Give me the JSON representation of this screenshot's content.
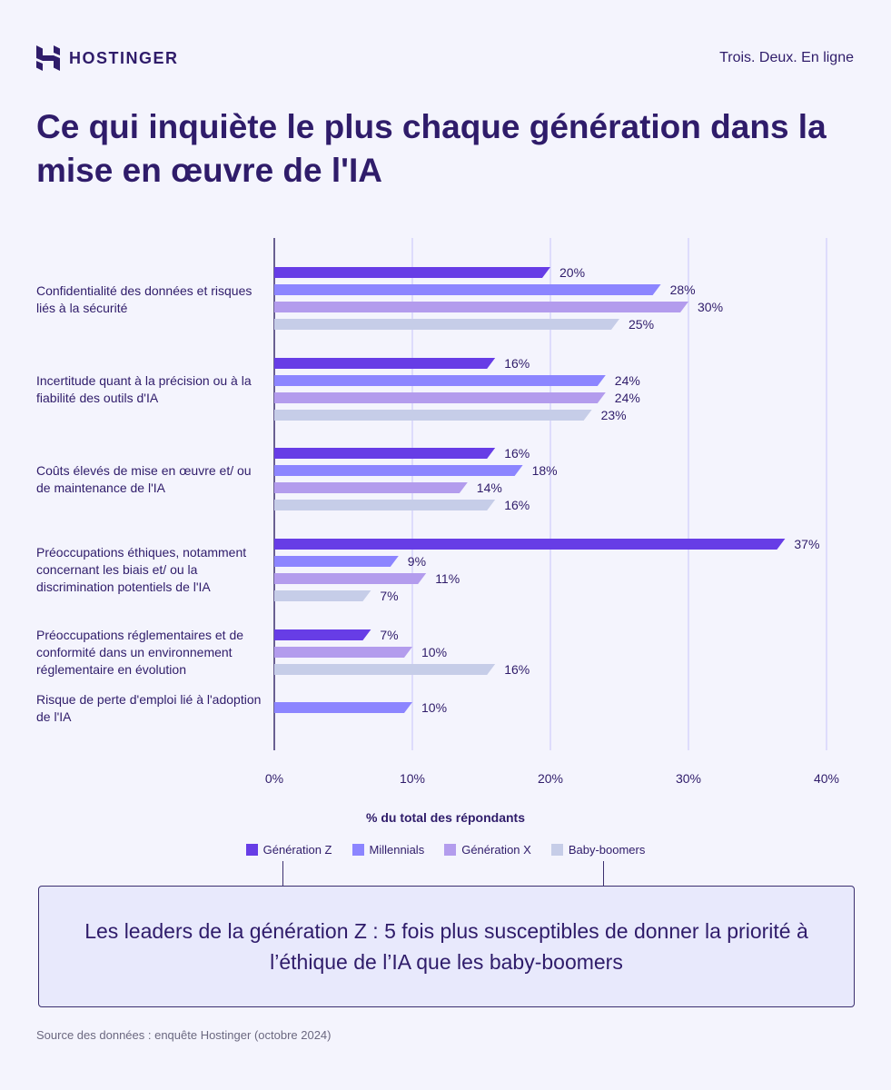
{
  "header": {
    "brand": "HOSTINGER",
    "tagline": "Trois. Deux. En ligne"
  },
  "title": "Ce qui inquiète le plus chaque génération dans la mise en œuvre de l'IA",
  "chart_data": {
    "type": "bar",
    "orientation": "horizontal",
    "categories": [
      "Confidentialité des données et risques liés à la sécurité",
      "Incertitude quant à la précision ou à la fiabilité des outils d'IA",
      "Coûts élevés de mise en œuvre et/ ou de maintenance de l'IA",
      "Préoccupations éthiques, notamment concernant les biais et/ ou la discrimination potentiels de l'IA",
      "Préoccupations réglementaires et de conformité dans un environnement réglementaire en évolution",
      "Risque de perte d'emploi lié à l'adoption de l'IA"
    ],
    "series": [
      {
        "name": "Génération Z",
        "color": "#673de6",
        "values": [
          20,
          16,
          16,
          37,
          7,
          null
        ]
      },
      {
        "name": "Millennials",
        "color": "#8c85ff",
        "values": [
          28,
          24,
          18,
          9,
          null,
          10
        ]
      },
      {
        "name": "Génération X",
        "color": "#b39ced",
        "values": [
          30,
          24,
          14,
          11,
          10,
          null
        ]
      },
      {
        "name": "Baby-boomers",
        "color": "#c6cde8",
        "values": [
          25,
          23,
          16,
          7,
          16,
          null
        ]
      }
    ],
    "xlabel": "% du total des répondants",
    "xlim": [
      0,
      40
    ],
    "xticks": [
      "0%",
      "10%",
      "20%",
      "30%",
      "40%"
    ],
    "value_suffix": "%",
    "grid": true,
    "legend": "bottom"
  },
  "callout": "Les leaders de la génération Z : 5 fois plus susceptibles de donner la priorité à l’éthique de l’IA que les baby-boomers",
  "source": "Source des données : enquête Hostinger (octobre 2024)"
}
